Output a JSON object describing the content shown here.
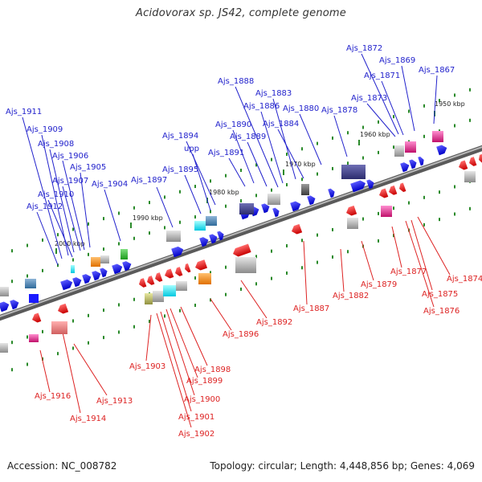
{
  "title": "Acidovorax sp. JS42, complete genome",
  "footer": {
    "accession": "Accession: NC_008782",
    "topology": "Topology: circular; Length: 4,448,856 bp; Genes: 4,069"
  },
  "colors": {
    "backbone": "#7a7a7a",
    "forward_gene": "#1a1aff",
    "reverse_gene": "#ff1a1a",
    "forward_label": "#2222cc",
    "reverse_label": "#dd2222",
    "tick": "#2a8a2a"
  },
  "kbp_ticks": [
    "2000 kbp",
    "1990 kbp",
    "1980 kbp",
    "1970 kbp",
    "1960 kbp",
    "1950 kbp"
  ],
  "forward_labels": [
    "Ajs_1911",
    "Ajs_1909",
    "Ajs_1908",
    "Ajs_1906",
    "Ajs_1905",
    "Ajs_1907",
    "Ajs_1904",
    "Ajs_1910",
    "Ajs_1912",
    "Ajs_1897",
    "Ajs_1895",
    "upp",
    "Ajs_1894",
    "Ajs_1891",
    "Ajs_1890",
    "Ajs_1889",
    "Ajs_1888",
    "Ajs_1886",
    "Ajs_1883",
    "Ajs_1884",
    "Ajs_1880",
    "Ajs_1878",
    "Ajs_1873",
    "Ajs_1871",
    "Ajs_1872",
    "Ajs_1869",
    "Ajs_1867"
  ],
  "reverse_labels": [
    "Ajs_1916",
    "Ajs_1914",
    "Ajs_1913",
    "Ajs_1903",
    "Ajs_1902",
    "Ajs_1901",
    "Ajs_1900",
    "Ajs_1899",
    "Ajs_1898",
    "Ajs_1896",
    "Ajs_1892",
    "Ajs_1887",
    "Ajs_1882",
    "Ajs_1879",
    "Ajs_1877",
    "Ajs_1876",
    "Ajs_1875",
    "Ajs_1874"
  ]
}
